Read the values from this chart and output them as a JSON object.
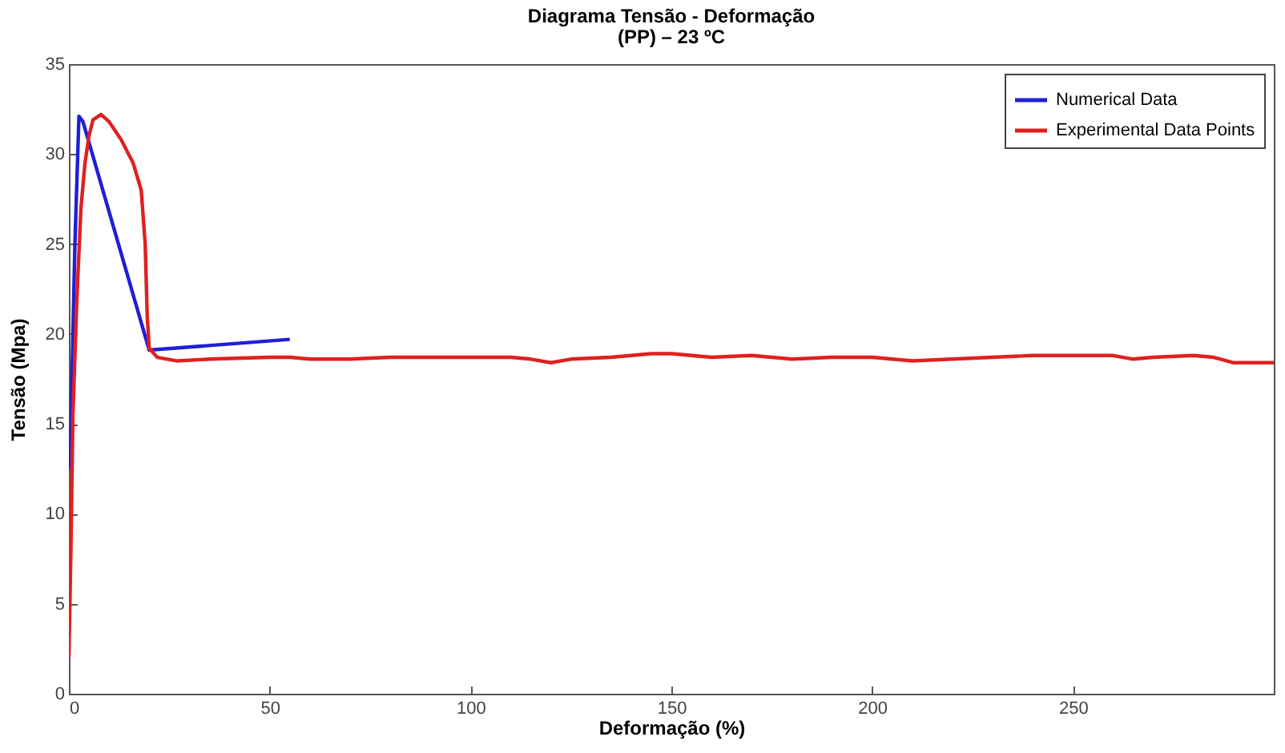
{
  "chart_data": {
    "type": "line",
    "title": "Diagrama Tensão - Deformação",
    "subtitle": "(PP) – 23 ºC",
    "xlabel": "Deformação (%)",
    "ylabel": "Tensão (Mpa)",
    "xlim": [
      0,
      300
    ],
    "xticks": [
      0,
      50,
      100,
      150,
      200,
      250
    ],
    "ylim": [
      0,
      35
    ],
    "yticks": [
      0,
      5,
      10,
      15,
      20,
      25,
      30,
      35
    ],
    "grid": false,
    "legend": "top right",
    "line_style": "solid",
    "series": [
      {
        "name": "Numerical Data",
        "color": "#1f1fd6",
        "x": [
          0.3,
          1,
          1.5,
          2.5,
          3.5,
          20,
          55
        ],
        "values": [
          12.5,
          20,
          25,
          32.1,
          31.8,
          19.1,
          19.7
        ]
      },
      {
        "name": "Experimental Data Points",
        "color": "#e02020",
        "x": [
          0,
          0.5,
          1,
          2,
          3,
          4,
          5,
          6,
          8,
          10,
          13,
          16,
          18,
          19,
          19.5,
          20,
          22,
          27,
          35,
          50,
          55,
          60,
          70,
          80,
          90,
          100,
          110,
          115,
          120,
          125,
          135,
          145,
          150,
          160,
          170,
          180,
          190,
          200,
          210,
          220,
          230,
          240,
          255,
          260,
          265,
          270,
          280,
          285,
          290,
          300
        ],
        "values": [
          2,
          8,
          15.5,
          22,
          27,
          29.5,
          31,
          31.9,
          32.2,
          31.8,
          30.8,
          29.5,
          28,
          25,
          21,
          19.2,
          18.7,
          18.5,
          18.6,
          18.7,
          18.7,
          18.6,
          18.6,
          18.7,
          18.7,
          18.7,
          18.7,
          18.6,
          18.4,
          18.6,
          18.7,
          18.9,
          18.9,
          18.7,
          18.8,
          18.6,
          18.7,
          18.7,
          18.5,
          18.6,
          18.7,
          18.8,
          18.8,
          18.8,
          18.6,
          18.7,
          18.8,
          18.7,
          18.4,
          18.4
        ]
      }
    ]
  }
}
